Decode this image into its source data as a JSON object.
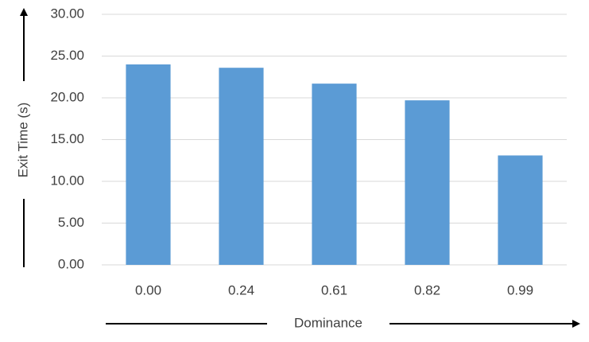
{
  "chart_data": {
    "type": "bar",
    "x_label": "Dominance",
    "y_label": "Exit Time (s)",
    "categories": [
      "0.00",
      "0.24",
      "0.61",
      "0.82",
      "0.99"
    ],
    "values": [
      24.0,
      23.6,
      21.7,
      19.7,
      13.1
    ],
    "color": "#5b9bd5",
    "ylim": [
      0,
      30
    ],
    "yticks": [
      {
        "value": 0,
        "label": "0.00"
      },
      {
        "value": 5,
        "label": "5.00"
      },
      {
        "value": 10,
        "label": "10.00"
      },
      {
        "value": 15,
        "label": "15.00"
      },
      {
        "value": 20,
        "label": "20.00"
      },
      {
        "value": 25,
        "label": "25.00"
      },
      {
        "value": 30,
        "label": "30.00"
      }
    ],
    "grid": true
  }
}
